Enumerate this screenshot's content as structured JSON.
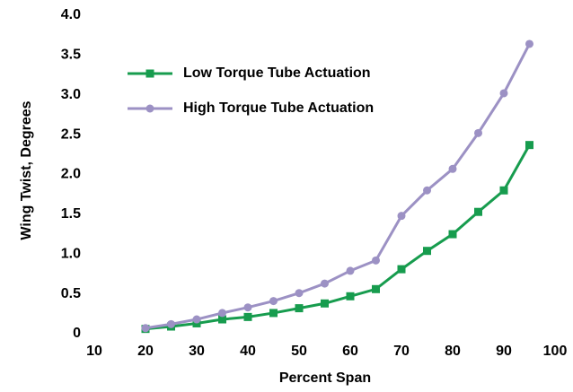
{
  "chart_data": {
    "type": "line",
    "x_label": "Percent Span",
    "y_label": "Wing Twist, Degrees",
    "x": [
      20,
      25,
      30,
      35,
      40,
      45,
      50,
      55,
      60,
      65,
      70,
      75,
      80,
      85,
      90,
      95
    ],
    "series": [
      {
        "name": "Low Torque Tube Actuation",
        "color": "#179c4e",
        "marker": "square",
        "values": [
          0.06,
          0.09,
          0.13,
          0.18,
          0.21,
          0.26,
          0.32,
          0.38,
          0.47,
          0.56,
          0.81,
          1.04,
          1.25,
          1.53,
          1.8,
          2.37
        ]
      },
      {
        "name": "High Torque Tube Actuation",
        "color": "#9c91c4",
        "marker": "circle",
        "values": [
          0.07,
          0.12,
          0.18,
          0.26,
          0.33,
          0.41,
          0.51,
          0.63,
          0.79,
          0.92,
          1.48,
          1.8,
          2.07,
          2.52,
          3.02,
          3.64
        ]
      }
    ],
    "xlim": [
      10,
      100
    ],
    "xticks": [
      10,
      20,
      30,
      40,
      50,
      60,
      70,
      80,
      90,
      100
    ],
    "ylim": [
      0,
      4
    ],
    "yticks": [
      0,
      0.5,
      {
        "value": 1,
        "label": "1.0"
      },
      1.5,
      {
        "value": 2,
        "label": "2.0"
      },
      2.5,
      {
        "value": 3,
        "label": "3.0"
      },
      3.5,
      {
        "value": 4,
        "label": "4.0"
      }
    ],
    "legend": "upper left",
    "grid": false
  }
}
